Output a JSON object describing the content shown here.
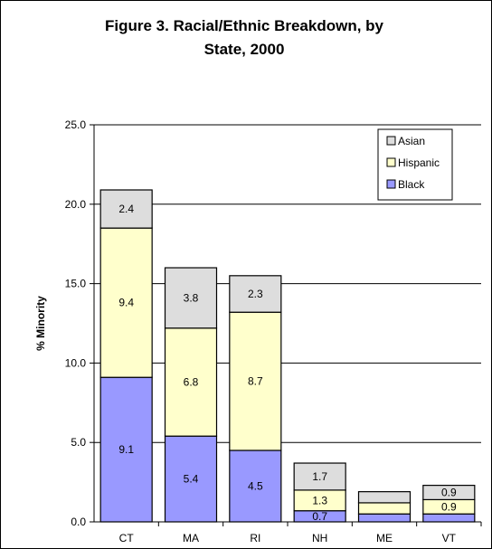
{
  "chart_data": {
    "type": "bar",
    "stacked": true,
    "title_line1": "Figure 3. Racial/Ethnic Breakdown, by",
    "title_line2": "State, 2000",
    "ylabel": "% Minority",
    "xlabel": "",
    "ylim": [
      0,
      25
    ],
    "yticks": [
      "0.0",
      "5.0",
      "10.0",
      "15.0",
      "20.0",
      "25.0"
    ],
    "grid": true,
    "legend_position": "top-right",
    "categories": [
      "CT",
      "MA",
      "RI",
      "NH",
      "ME",
      "VT"
    ],
    "series": [
      {
        "name": "Black",
        "color": "#9999ff",
        "values": [
          9.1,
          5.4,
          4.5,
          0.7,
          0.5,
          0.5
        ],
        "labels": [
          "9.1",
          "5.4",
          "4.5",
          "0.7",
          "",
          ""
        ]
      },
      {
        "name": "Hispanic",
        "color": "#ffffcc",
        "values": [
          9.4,
          6.8,
          8.7,
          1.3,
          0.7,
          0.9
        ],
        "labels": [
          "9.4",
          "6.8",
          "8.7",
          "1.3",
          "",
          "0.9"
        ]
      },
      {
        "name": "Asian",
        "color": "#dddddd",
        "values": [
          2.4,
          3.8,
          2.3,
          1.7,
          0.7,
          0.9
        ],
        "labels": [
          "2.4",
          "3.8",
          "2.3",
          "1.7",
          "",
          "0.9"
        ]
      }
    ],
    "legend_order": [
      "Asian",
      "Hispanic",
      "Black"
    ]
  }
}
